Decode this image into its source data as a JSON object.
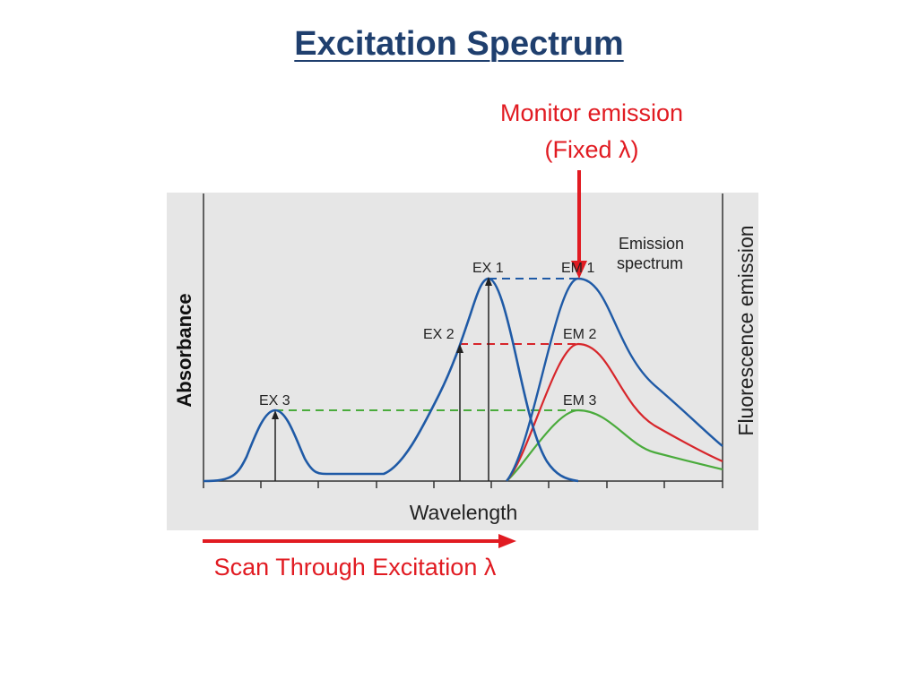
{
  "slide": {
    "title": "Excitation Spectrum"
  },
  "annotations": {
    "monitor_line1": "Monitor emission",
    "monitor_line2": "(Fixed λ)",
    "scan": "Scan Through Excitation λ"
  },
  "figure": {
    "xlabel": "Wavelength",
    "ylabel_left": "Absorbance",
    "ylabel_right": "Fluorescence emission",
    "legend_line1": "Emission",
    "legend_line2": "spectrum",
    "peaks": {
      "ex1": "EX 1",
      "ex2": "EX 2",
      "ex3": "EX 3",
      "em1": "EM 1",
      "em2": "EM 2",
      "em3": "EM 3"
    }
  },
  "colors": {
    "title": "#1f3f6e",
    "annotation_red": "#e11b22",
    "panel_background": "#e6e6e6",
    "absorbance_curve": "#1f5aa6",
    "em1": "#1f5aa6",
    "em2": "#d7262b",
    "em3": "#4aab3c"
  }
}
